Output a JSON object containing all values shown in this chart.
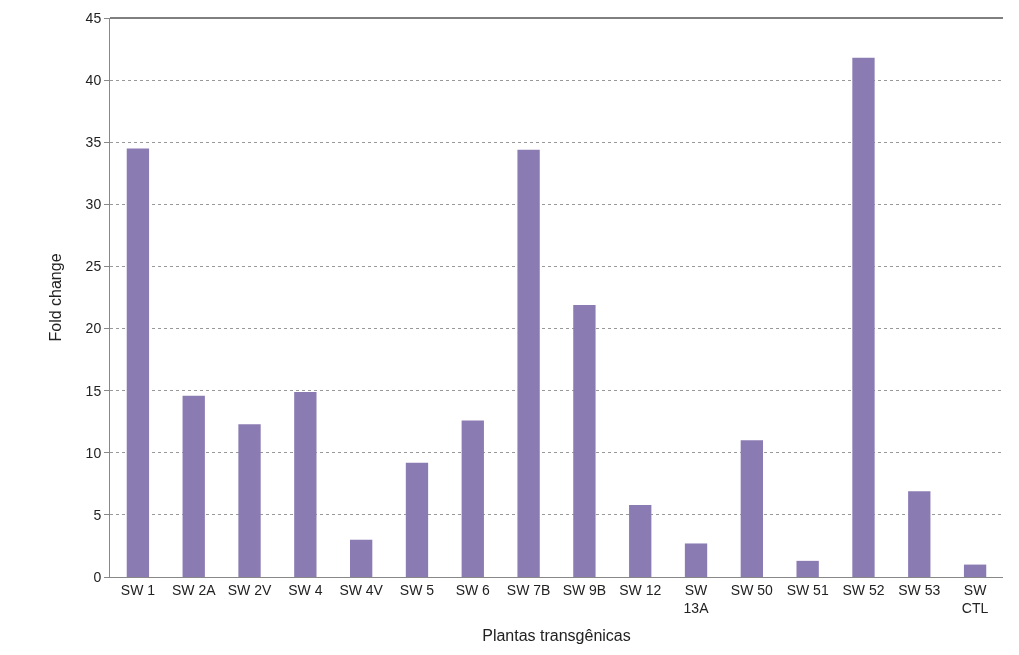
{
  "chart_data": {
    "type": "bar",
    "xlabel": "Plantas transgênicas",
    "ylabel": "Fold change",
    "categories": [
      "SW 1",
      "SW 2A",
      "SW 2V",
      "SW 4",
      "SW 4V",
      "SW 5",
      "SW 6",
      "SW 7B",
      "SW 9B",
      "SW 12",
      "SW 13A",
      "SW 50",
      "SW 51",
      "SW 52",
      "SW 53",
      "SW CTL"
    ],
    "values": [
      34.5,
      14.6,
      12.3,
      14.9,
      3.0,
      9.2,
      12.6,
      34.4,
      21.9,
      5.8,
      2.7,
      11.0,
      1.3,
      41.8,
      6.9,
      1.0
    ],
    "color": "#8b7bb3",
    "ylim": [
      0,
      45
    ],
    "yticks": [
      0,
      5,
      10,
      15,
      20,
      25,
      30,
      35,
      40,
      45
    ],
    "grid": "y"
  }
}
